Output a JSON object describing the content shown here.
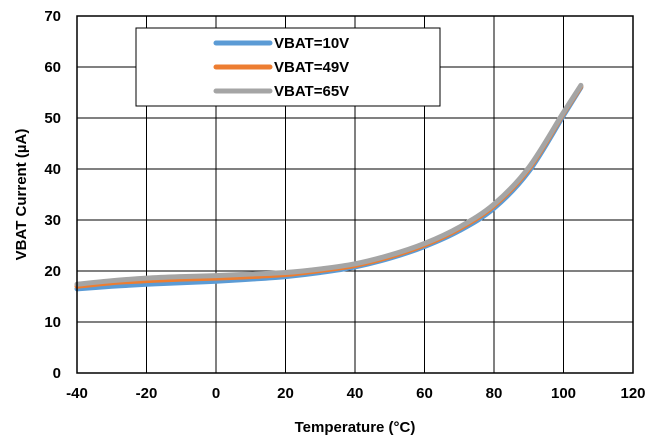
{
  "chart_data": {
    "type": "line",
    "title": "",
    "xlabel": "Temperature (°C)",
    "ylabel": "VBAT Current (µA)",
    "xlim": [
      -40,
      120
    ],
    "ylim": [
      0,
      70
    ],
    "xticks": [
      -40,
      -20,
      0,
      20,
      40,
      60,
      80,
      100,
      120
    ],
    "yticks": [
      0,
      10,
      20,
      30,
      40,
      50,
      60,
      70
    ],
    "grid": true,
    "legend_position": "top-left",
    "series": [
      {
        "name": "VBAT=10V",
        "color": "#5B9BD5",
        "x": [
          -40,
          -30,
          -20,
          -10,
          0,
          10,
          20,
          30,
          40,
          50,
          60,
          70,
          80,
          90,
          100,
          105
        ],
        "y": [
          16.5,
          17.0,
          17.4,
          17.7,
          18.0,
          18.4,
          18.9,
          19.7,
          20.8,
          22.5,
          24.8,
          27.9,
          32.3,
          39.5,
          50.5,
          56.0
        ]
      },
      {
        "name": "VBAT=49V",
        "color": "#ED7D31",
        "x": [
          -40,
          -30,
          -20,
          -10,
          0,
          10,
          20,
          30,
          40,
          50,
          60,
          70,
          80,
          90,
          100,
          105
        ],
        "y": [
          17.0,
          17.7,
          18.1,
          18.4,
          18.6,
          18.9,
          19.3,
          20.1,
          21.1,
          22.8,
          25.1,
          28.3,
          32.8,
          40.0,
          50.9,
          56.2
        ]
      },
      {
        "name": "VBAT=65V",
        "color": "#A5A5A5",
        "x": [
          -40,
          -30,
          -20,
          -10,
          0,
          10,
          20,
          30,
          40,
          50,
          60,
          70,
          80,
          90,
          100,
          105
        ],
        "y": [
          17.4,
          18.1,
          18.6,
          18.9,
          19.1,
          19.4,
          19.7,
          20.4,
          21.4,
          23.1,
          25.4,
          28.6,
          33.1,
          40.3,
          51.1,
          56.4
        ]
      }
    ]
  }
}
